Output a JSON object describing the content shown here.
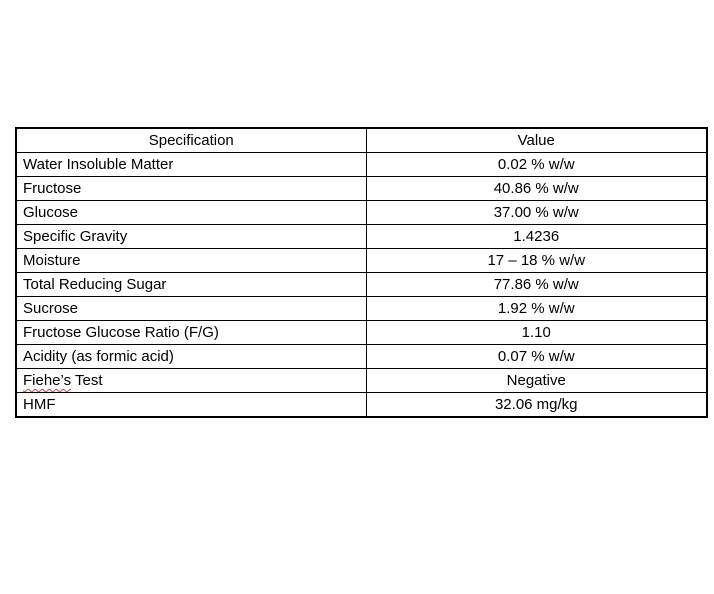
{
  "table": {
    "headers": {
      "spec": "Specification",
      "value": "Value"
    },
    "rows": [
      {
        "spec": "Water Insoluble Matter",
        "value": "0.02 % w/w"
      },
      {
        "spec": "Fructose",
        "value": "40.86 % w/w"
      },
      {
        "spec": "Glucose",
        "value": "37.00 % w/w"
      },
      {
        "spec": "Specific Gravity",
        "value": "1.4236"
      },
      {
        "spec": "Moisture",
        "value": "17 – 18 % w/w"
      },
      {
        "spec": "Total Reducing Sugar",
        "value": "77.86 % w/w"
      },
      {
        "spec": "Sucrose",
        "value": "1.92 % w/w"
      },
      {
        "spec": "Fructose Glucose Ratio (F/G)",
        "value": "1.10"
      },
      {
        "spec": "Acidity (as formic acid)",
        "value": "0.07 % w/w"
      },
      {
        "spec_misspelled": "Fiehe’s",
        "spec_rest": " Test",
        "value": "Negative"
      },
      {
        "spec": "HMF",
        "value": "32.06 mg/kg"
      }
    ],
    "colors": {
      "border": "#000000",
      "text": "#000000",
      "spellcheck_underline": "#e03b3b"
    }
  }
}
